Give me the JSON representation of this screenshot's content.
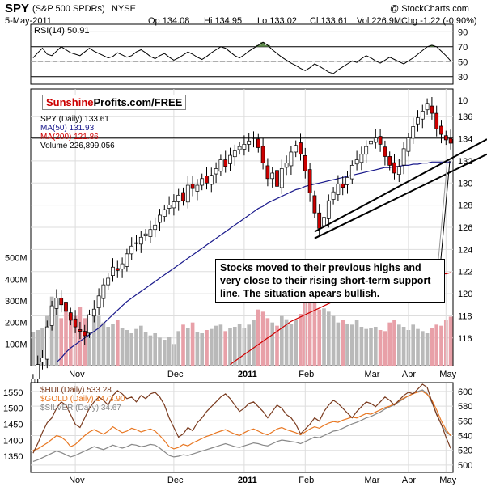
{
  "header": {
    "ticker": "SPY",
    "name": "(S&P 500 SPDRs)",
    "exchange": "NYSE",
    "credit": "@ StockCharts.com",
    "date": "5-May-2011",
    "op": "Op 134.08",
    "hi": "Hi 134.95",
    "lo": "Lo 133.02",
    "cl": "Cl 133.61",
    "vol": "Vol 226.9M",
    "chg": "Chg -1.22 (-0.90%)"
  },
  "logo": {
    "part1": "Sunshine",
    "part2": "Profits.com/FREE"
  },
  "annotation": "Stocks moved to their previous highs and very close to their rising short-term support line. The situation apears bullish.",
  "chart_data": [
    {
      "type": "line",
      "panel": "rsi",
      "legend": [
        "RSI(14) 50.91"
      ],
      "ylim": [
        20,
        100
      ],
      "yticks": [
        "90",
        "70",
        "50",
        "30"
      ],
      "reference_lines": [
        70,
        50,
        30
      ],
      "values": [
        55,
        62,
        68,
        60,
        58,
        64,
        70,
        66,
        62,
        60,
        58,
        63,
        68,
        64,
        61,
        58,
        55,
        57,
        62,
        59,
        56,
        58,
        63,
        66,
        62,
        57,
        54,
        58,
        61,
        56,
        52,
        55,
        59,
        63,
        60,
        56,
        53,
        57,
        62,
        66,
        70,
        68,
        63,
        58,
        55,
        59,
        64,
        68,
        72,
        76,
        72,
        66,
        61,
        56,
        52,
        48,
        45,
        41,
        38,
        42,
        47,
        44,
        40,
        36,
        34,
        39,
        43,
        47,
        51,
        49,
        54,
        58,
        55,
        51,
        48,
        52,
        56,
        53,
        50,
        47,
        51,
        55,
        60,
        65,
        70,
        72,
        70,
        64,
        58,
        51
      ]
    },
    {
      "type": "candlestick",
      "panel": "price",
      "legend": [
        "SPY (Daily) 133.61",
        "MA(50) 131.93",
        "MA(200) 121.86",
        "Volume 226,899,056"
      ],
      "ylim": [
        113.5,
        138.5
      ],
      "yticks": [
        "136",
        "134",
        "132",
        "130",
        "128",
        "126",
        "124",
        "122",
        "120",
        "118",
        "116"
      ],
      "extra_tick": "10",
      "volume_ticks": [
        "500M",
        "400M",
        "300M",
        "200M",
        "100M"
      ],
      "x_labels": [
        "Nov",
        "Dec",
        "2011",
        "Feb",
        "Mar",
        "Apr",
        "May"
      ],
      "resistance": 134.1,
      "close": [
        112.3,
        113.6,
        114.2,
        117.0,
        118.9,
        119.6,
        119.0,
        118.4,
        117.6,
        117.0,
        116.6,
        116.2,
        118.1,
        118.6,
        119.8,
        120.8,
        121.4,
        122.4,
        122.1,
        122.7,
        123.6,
        124.3,
        124.6,
        125.1,
        125.4,
        125.8,
        126.2,
        127.1,
        127.6,
        128.0,
        128.3,
        128.9,
        128.4,
        129.8,
        129.5,
        129.8,
        130.4,
        130.0,
        130.7,
        131.3,
        132.1,
        131.5,
        132.5,
        132.9,
        133.3,
        133.5,
        133.8,
        134.1,
        133.2,
        131.8,
        130.4,
        130.9,
        129.7,
        131.3,
        131.8,
        132.8,
        133.4,
        132.6,
        131.1,
        129.1,
        127.3,
        125.9,
        126.9,
        128.4,
        129.2,
        129.9,
        129.6,
        130.5,
        131.6,
        132.1,
        132.6,
        133.3,
        133.8,
        134.1,
        133.5,
        132.4,
        131.6,
        130.9,
        131.5,
        133.1,
        134.1,
        135.1,
        135.9,
        136.5,
        137.2,
        136.3,
        134.9,
        134.4,
        133.9,
        133.6
      ],
      "volume": [
        155,
        165,
        175,
        230,
        320,
        300,
        220,
        250,
        240,
        230,
        270,
        220,
        210,
        250,
        230,
        200,
        180,
        195,
        210,
        175,
        165,
        150,
        170,
        185,
        155,
        140,
        150,
        130,
        120,
        135,
        100,
        160,
        190,
        175,
        200,
        155,
        150,
        165,
        170,
        185,
        190,
        160,
        175,
        180,
        195,
        175,
        190,
        210,
        260,
        250,
        220,
        200,
        185,
        230,
        215,
        195,
        210,
        240,
        290,
        340,
        430,
        260,
        265,
        250,
        230,
        200,
        210,
        195,
        190,
        210,
        180,
        170,
        175,
        180,
        165,
        160,
        200,
        210,
        190,
        180,
        165,
        190,
        170,
        160,
        150,
        175,
        190,
        185,
        210,
        227
      ],
      "ma50": [
        112.0,
        112.2,
        112.5,
        112.9,
        113.4,
        113.8,
        114.2,
        114.7,
        115.1,
        115.4,
        115.7,
        116.0,
        116.3,
        116.6,
        116.9,
        117.3,
        117.7,
        118.1,
        118.5,
        118.9,
        119.3,
        119.6,
        119.9,
        120.2,
        120.5,
        120.8,
        121.1,
        121.4,
        121.7,
        122.0,
        122.3,
        122.6,
        122.9,
        123.2,
        123.5,
        123.8,
        124.1,
        124.4,
        124.7,
        125.0,
        125.3,
        125.6,
        125.9,
        126.2,
        126.5,
        126.8,
        127.1,
        127.4,
        127.7,
        127.9,
        128.2,
        128.4,
        128.6,
        128.8,
        129.0,
        129.2,
        129.4,
        129.5,
        129.7,
        129.8,
        129.9,
        130.0,
        130.1,
        130.2,
        130.3,
        130.4,
        130.5,
        130.6,
        130.7,
        130.8,
        130.9,
        131.0,
        131.1,
        131.2,
        131.3,
        131.4,
        131.4,
        131.5,
        131.5,
        131.6,
        131.6,
        131.7,
        131.7,
        131.8,
        131.8,
        131.9,
        131.9,
        131.9,
        131.9,
        131.9
      ],
      "ma200": [
        106.0,
        106.1,
        106.2,
        106.3,
        106.4,
        106.5,
        106.6,
        106.7,
        106.8,
        106.9,
        107.0,
        107.1,
        107.2,
        107.3,
        107.4,
        107.5,
        107.6,
        107.7,
        107.8,
        107.9,
        108.0,
        108.2,
        108.4,
        108.6,
        108.8,
        109.0,
        109.2,
        109.4,
        109.6,
        109.8,
        110.0,
        110.3,
        110.6,
        110.9,
        111.2,
        111.5,
        111.8,
        112.1,
        112.4,
        112.7,
        113.0,
        113.3,
        113.6,
        113.9,
        114.2,
        114.5,
        114.8,
        115.1,
        115.4,
        115.7,
        116.0,
        116.3,
        116.6,
        116.9,
        117.2,
        117.5,
        117.7,
        117.9,
        118.1,
        118.3,
        118.5,
        118.7,
        118.9,
        119.1,
        119.3,
        119.5,
        119.7,
        119.9,
        120.1,
        120.3,
        120.4,
        120.5,
        120.6,
        120.7,
        120.8,
        120.9,
        121.0,
        121.1,
        121.2,
        121.3,
        121.4,
        121.5,
        121.5,
        121.6,
        121.6,
        121.7,
        121.7,
        121.8,
        121.8,
        121.9
      ],
      "trendlines": [
        {
          "from": {
            "i": 60,
            "v": 125.6
          },
          "to": {
            "i": 89,
            "v": 132.2
          }
        },
        {
          "from": {
            "i": 60,
            "v": 125.0
          },
          "to": {
            "i": 89,
            "v": 131.0
          }
        }
      ]
    },
    {
      "type": "line",
      "panel": "metals",
      "legend": [
        "$HUI (Daily) 533.28",
        "$GOLD (Daily) 1473.90",
        "$SILVER (Daily) 34.67"
      ],
      "x_labels": [
        "Nov",
        "Dec",
        "2011",
        "Feb",
        "Mar",
        "Apr",
        "May"
      ],
      "left_ylim": [
        1300,
        1580
      ],
      "left_ticks": [
        "1550",
        "1500",
        "1450",
        "1400",
        "1350"
      ],
      "right_ylim": [
        490,
        612
      ],
      "right_ticks": [
        "600",
        "580",
        "560",
        "540",
        "520",
        "500"
      ],
      "series": [
        {
          "name": "$HUI (Daily) 533.28",
          "color": "#7a3b1f",
          "axis": "left",
          "values": [
            1360,
            1390,
            1425,
            1455,
            1470,
            1500,
            1520,
            1510,
            1480,
            1450,
            1440,
            1470,
            1500,
            1520,
            1535,
            1525,
            1510,
            1540,
            1555,
            1545,
            1530,
            1535,
            1520,
            1540,
            1530,
            1545,
            1550,
            1535,
            1510,
            1470,
            1440,
            1410,
            1420,
            1440,
            1430,
            1455,
            1470,
            1490,
            1505,
            1520,
            1535,
            1545,
            1530,
            1510,
            1490,
            1500,
            1515,
            1520,
            1505,
            1490,
            1470,
            1490,
            1510,
            1500,
            1480,
            1470,
            1450,
            1420,
            1435,
            1450,
            1470,
            1460,
            1490,
            1510,
            1525,
            1515,
            1500,
            1485,
            1470,
            1490,
            1505,
            1520,
            1515,
            1505,
            1520,
            1535,
            1525,
            1510,
            1525,
            1540,
            1550,
            1545,
            1560,
            1575,
            1565,
            1520,
            1480,
            1450,
            1410,
            1375
          ]
        },
        {
          "name": "$GOLD (Daily) 1473.90",
          "color": "#e87722",
          "axis": "right",
          "values": [
            520,
            522,
            526,
            530,
            535,
            540,
            538,
            533,
            525,
            528,
            534,
            540,
            545,
            548,
            545,
            542,
            546,
            552,
            548,
            544,
            546,
            550,
            548,
            545,
            547,
            549,
            546,
            540,
            533,
            525,
            522,
            524,
            528,
            526,
            530,
            533,
            536,
            539,
            541,
            544,
            546,
            548,
            545,
            542,
            540,
            544,
            547,
            549,
            546,
            543,
            541,
            545,
            549,
            551,
            548,
            546,
            544,
            541,
            545,
            549,
            552,
            550,
            554,
            557,
            559,
            558,
            561,
            563,
            565,
            564,
            567,
            570,
            569,
            572,
            575,
            578,
            580,
            583,
            587,
            591,
            594,
            597,
            599,
            600,
            596,
            588,
            575,
            560,
            548,
            540
          ]
        },
        {
          "name": "$SILVER (Daily) 34.67",
          "color": "#888888",
          "axis": "right",
          "values": [
            505,
            507,
            510,
            513,
            516,
            519,
            517,
            514,
            511,
            513,
            516,
            519,
            522,
            525,
            523,
            521,
            524,
            527,
            525,
            523,
            525,
            528,
            527,
            525,
            526,
            528,
            527,
            523,
            518,
            513,
            511,
            512,
            514,
            513,
            515,
            517,
            519,
            521,
            523,
            525,
            527,
            529,
            527,
            525,
            524,
            526,
            528,
            530,
            529,
            527,
            526,
            529,
            532,
            534,
            533,
            532,
            531,
            529,
            532,
            535,
            538,
            537,
            540,
            543,
            546,
            547,
            550,
            553,
            556,
            558,
            561,
            564,
            566,
            569,
            572,
            576,
            579,
            582,
            586,
            590,
            594,
            597,
            600,
            602,
            597,
            585,
            570,
            555,
            545,
            540
          ]
        }
      ]
    }
  ]
}
